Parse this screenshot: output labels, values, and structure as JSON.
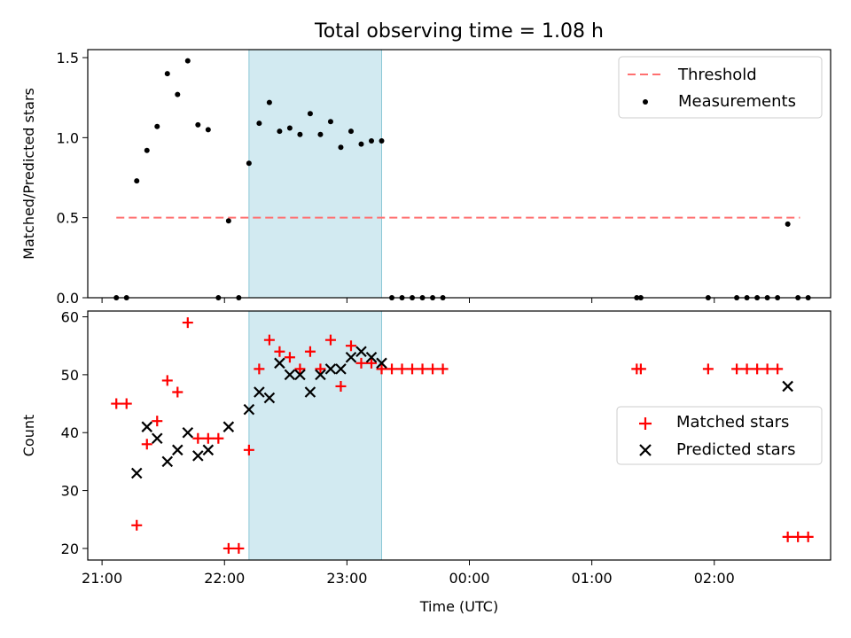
{
  "figure": {
    "title": "Total observing time = 1.08 h"
  },
  "chart_data": [
    {
      "type": "scatter",
      "ylabel": "Matched/Predicted stars",
      "xlabel": "",
      "ylim": [
        0,
        1.55
      ],
      "yticks": [
        "0.0",
        "0.5",
        "1.0",
        "1.5"
      ],
      "xlim": [
        "20:53",
        "02:57"
      ],
      "legend": {
        "placement": "top-right",
        "entries": [
          "Threshold",
          "Measurements"
        ]
      },
      "shaded_interval": [
        "22:12",
        "23:17"
      ],
      "colors": {
        "threshold": "#ff7070",
        "measurements": "#000000",
        "shade": "#add8e6"
      },
      "series": [
        {
          "name": "Threshold",
          "style": "dashed-line",
          "points": [
            [
              "21:07",
              0.5
            ],
            [
              "02:42",
              0.5
            ]
          ]
        },
        {
          "name": "Measurements",
          "style": "dot",
          "points": [
            [
              "21:07",
              0.0
            ],
            [
              "21:12",
              0.0
            ],
            [
              "21:17",
              0.73
            ],
            [
              "21:22",
              0.92
            ],
            [
              "21:27",
              1.07
            ],
            [
              "21:32",
              1.4
            ],
            [
              "21:37",
              1.27
            ],
            [
              "21:42",
              1.48
            ],
            [
              "21:47",
              1.08
            ],
            [
              "21:52",
              1.05
            ],
            [
              "21:57",
              0.0
            ],
            [
              "22:02",
              0.48
            ],
            [
              "22:07",
              0.0
            ],
            [
              "22:12",
              0.84
            ],
            [
              "22:17",
              1.09
            ],
            [
              "22:22",
              1.22
            ],
            [
              "22:27",
              1.04
            ],
            [
              "22:32",
              1.06
            ],
            [
              "22:37",
              1.02
            ],
            [
              "22:42",
              1.15
            ],
            [
              "22:47",
              1.02
            ],
            [
              "22:52",
              1.1
            ],
            [
              "22:57",
              0.94
            ],
            [
              "23:02",
              1.04
            ],
            [
              "23:07",
              0.96
            ],
            [
              "23:12",
              0.98
            ],
            [
              "23:17",
              0.98
            ],
            [
              "23:22",
              0.0
            ],
            [
              "23:27",
              0.0
            ],
            [
              "23:32",
              0.0
            ],
            [
              "23:37",
              0.0
            ],
            [
              "23:42",
              0.0
            ],
            [
              "23:47",
              0.0
            ],
            [
              "01:22",
              0.0
            ],
            [
              "01:24",
              0.0
            ],
            [
              "01:57",
              0.0
            ],
            [
              "02:11",
              0.0
            ],
            [
              "02:16",
              0.0
            ],
            [
              "02:21",
              0.0
            ],
            [
              "02:26",
              0.0
            ],
            [
              "02:31",
              0.0
            ],
            [
              "02:36",
              0.46
            ],
            [
              "02:41",
              0.0
            ],
            [
              "02:46",
              0.0
            ]
          ]
        }
      ]
    },
    {
      "type": "scatter",
      "ylabel": "Count",
      "xlabel": "Time (UTC)",
      "ylim": [
        18,
        61
      ],
      "yticks": [
        "20",
        "30",
        "40",
        "50",
        "60"
      ],
      "xlim": [
        "20:53",
        "02:57"
      ],
      "xticks": [
        "21:00",
        "22:00",
        "23:00",
        "00:00",
        "01:00",
        "02:00"
      ],
      "legend": {
        "placement": "center-right",
        "entries": [
          "Matched stars",
          "Predicted stars"
        ]
      },
      "shaded_interval": [
        "22:12",
        "23:17"
      ],
      "colors": {
        "matched": "#ff0000",
        "predicted": "#000000",
        "shade": "#add8e6"
      },
      "series": [
        {
          "name": "Matched stars",
          "marker": "plus",
          "points": [
            [
              "21:07",
              45
            ],
            [
              "21:12",
              45
            ],
            [
              "21:17",
              24
            ],
            [
              "21:22",
              38
            ],
            [
              "21:27",
              42
            ],
            [
              "21:32",
              49
            ],
            [
              "21:37",
              47
            ],
            [
              "21:42",
              59
            ],
            [
              "21:47",
              39
            ],
            [
              "21:52",
              39
            ],
            [
              "21:57",
              39
            ],
            [
              "22:02",
              20
            ],
            [
              "22:07",
              20
            ],
            [
              "22:12",
              37
            ],
            [
              "22:17",
              51
            ],
            [
              "22:22",
              56
            ],
            [
              "22:27",
              54
            ],
            [
              "22:32",
              53
            ],
            [
              "22:37",
              51
            ],
            [
              "22:42",
              54
            ],
            [
              "22:47",
              51
            ],
            [
              "22:52",
              56
            ],
            [
              "22:57",
              48
            ],
            [
              "23:02",
              55
            ],
            [
              "23:07",
              52
            ],
            [
              "23:12",
              52
            ],
            [
              "23:17",
              51
            ],
            [
              "23:22",
              51
            ],
            [
              "23:27",
              51
            ],
            [
              "23:32",
              51
            ],
            [
              "23:37",
              51
            ],
            [
              "23:42",
              51
            ],
            [
              "23:47",
              51
            ],
            [
              "01:22",
              51
            ],
            [
              "01:24",
              51
            ],
            [
              "01:57",
              51
            ],
            [
              "02:11",
              51
            ],
            [
              "02:16",
              51
            ],
            [
              "02:21",
              51
            ],
            [
              "02:26",
              51
            ],
            [
              "02:31",
              51
            ],
            [
              "02:36",
              22
            ],
            [
              "02:41",
              22
            ],
            [
              "02:46",
              22
            ]
          ]
        },
        {
          "name": "Predicted stars",
          "marker": "x",
          "points": [
            [
              "21:17",
              33
            ],
            [
              "21:22",
              41
            ],
            [
              "21:27",
              39
            ],
            [
              "21:32",
              35
            ],
            [
              "21:37",
              37
            ],
            [
              "21:42",
              40
            ],
            [
              "21:47",
              36
            ],
            [
              "21:52",
              37
            ],
            [
              "22:02",
              41
            ],
            [
              "22:12",
              44
            ],
            [
              "22:17",
              47
            ],
            [
              "22:22",
              46
            ],
            [
              "22:27",
              52
            ],
            [
              "22:32",
              50
            ],
            [
              "22:37",
              50
            ],
            [
              "22:42",
              47
            ],
            [
              "22:47",
              50
            ],
            [
              "22:52",
              51
            ],
            [
              "22:57",
              51
            ],
            [
              "23:02",
              53
            ],
            [
              "23:07",
              54
            ],
            [
              "23:12",
              53
            ],
            [
              "23:17",
              52
            ],
            [
              "02:36",
              48
            ]
          ]
        }
      ]
    }
  ]
}
